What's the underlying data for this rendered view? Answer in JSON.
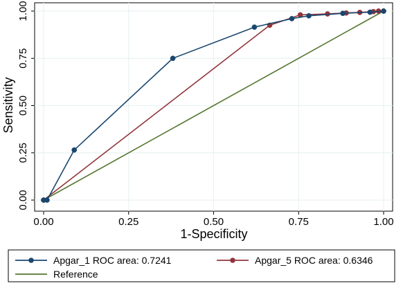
{
  "chart_data": {
    "type": "line",
    "title": "",
    "xlabel": "1-Specificity",
    "ylabel": "Sensitivity",
    "xlim": [
      0,
      1
    ],
    "ylim": [
      0,
      1
    ],
    "x_ticks": [
      "0.00",
      "0.25",
      "0.50",
      "0.75",
      "1.00"
    ],
    "y_ticks": [
      "0.00",
      "0.25",
      "0.50",
      "0.75",
      "1.00"
    ],
    "grid": true,
    "legend_position": "bottom",
    "series": [
      {
        "name": "Apgar_1 ROC area: 0.7241",
        "color": "#1a476f",
        "markers": true,
        "points": [
          [
            0.0,
            0.0
          ],
          [
            0.01,
            0.0
          ],
          [
            0.09,
            0.265
          ],
          [
            0.38,
            0.75
          ],
          [
            0.62,
            0.915
          ],
          [
            0.73,
            0.96
          ],
          [
            0.78,
            0.975
          ],
          [
            0.88,
            0.988
          ],
          [
            0.96,
            0.994
          ],
          [
            1.0,
            1.0
          ]
        ]
      },
      {
        "name": "Apgar_5 ROC area: 0.6346",
        "color": "#90353b",
        "markers": true,
        "points": [
          [
            0.0,
            0.0
          ],
          [
            0.665,
            0.925
          ],
          [
            0.755,
            0.98
          ],
          [
            0.835,
            0.985
          ],
          [
            0.89,
            0.99
          ],
          [
            0.93,
            0.993
          ],
          [
            0.97,
            0.997
          ],
          [
            0.985,
            1.0
          ],
          [
            1.0,
            1.0
          ]
        ]
      },
      {
        "name": "Reference",
        "color": "#55752f",
        "markers": false,
        "points": [
          [
            0.0,
            0.0
          ],
          [
            1.0,
            1.0
          ]
        ]
      }
    ]
  }
}
